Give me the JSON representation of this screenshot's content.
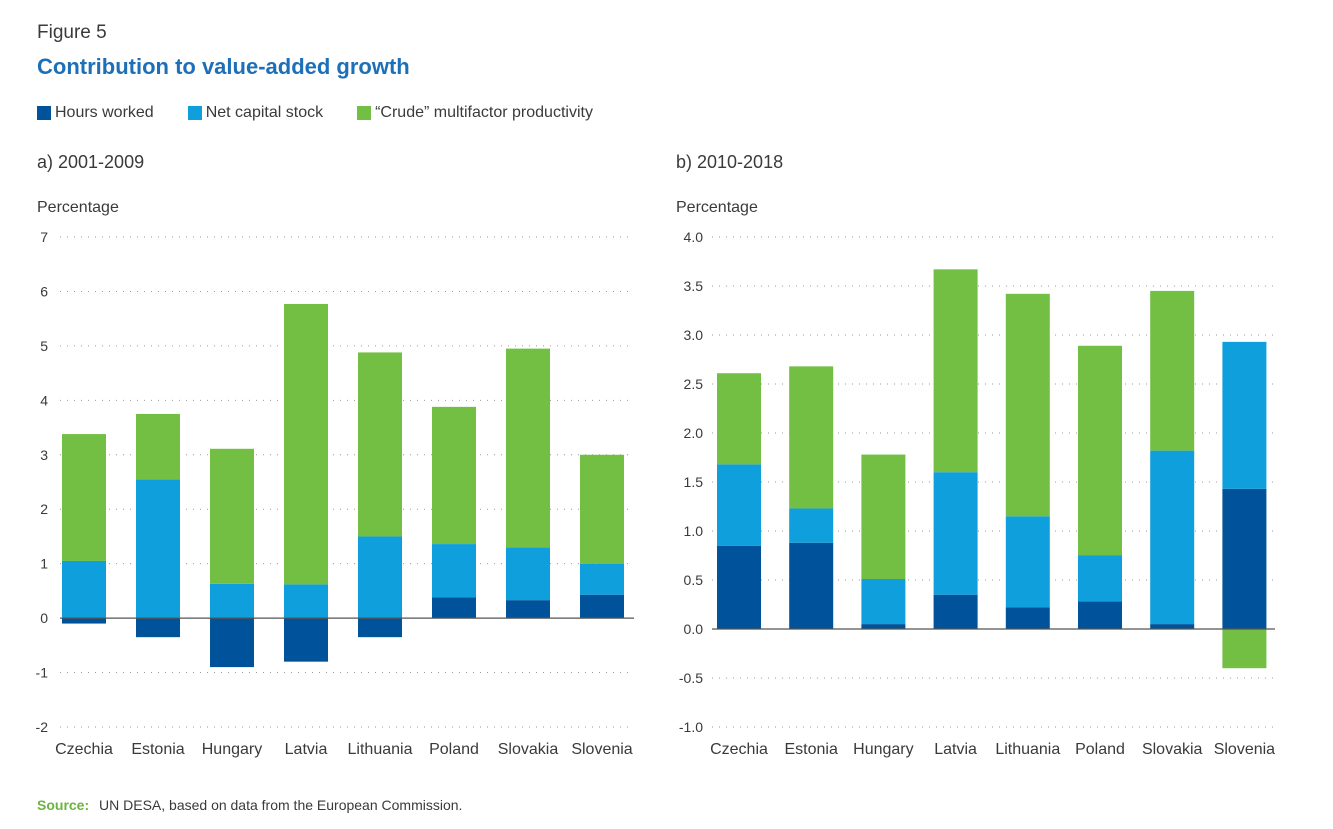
{
  "figure": {
    "label": "Figure 5",
    "title": "Contribution to value-added growth",
    "source_label": "Source:",
    "source_text": "UN DESA, based on data from the European Commission."
  },
  "legend": [
    {
      "name": "Hours worked",
      "color": "#00529b"
    },
    {
      "name": "Net capital stock",
      "color": "#0e9fdc"
    },
    {
      "name": "“Crude” multifactor productivity",
      "color": "#72bf44"
    }
  ],
  "chart_data": [
    {
      "type": "bar",
      "stacked": true,
      "title": "a)  2001-2009",
      "ylabel": "Percentage",
      "ylim": [
        -2,
        7
      ],
      "yticks": [
        "-2",
        "-1",
        "0",
        "1",
        "2",
        "3",
        "4",
        "5",
        "6",
        "7"
      ],
      "ytick_values": [
        -2,
        -1,
        0,
        1,
        2,
        3,
        4,
        5,
        6,
        7
      ],
      "grid": true,
      "categories": [
        "Czechia",
        "Estonia",
        "Hungary",
        "Latvia",
        "Lithuania",
        "Poland",
        "Slovakia",
        "Slovenia"
      ],
      "series": [
        {
          "name": "Hours worked",
          "values": [
            -0.1,
            -0.35,
            -0.9,
            -0.8,
            -0.35,
            0.38,
            0.33,
            0.43
          ]
        },
        {
          "name": "Net capital stock",
          "values": [
            1.05,
            2.55,
            0.63,
            0.62,
            1.5,
            0.98,
            0.97,
            0.57
          ]
        },
        {
          "name": "“Crude” multifactor productivity",
          "values": [
            2.33,
            1.2,
            2.48,
            5.15,
            3.38,
            2.52,
            3.65,
            2.0
          ]
        }
      ]
    },
    {
      "type": "bar",
      "stacked": true,
      "title": "b)  2010-2018",
      "ylabel": "Percentage",
      "ylim": [
        -1.0,
        4.0
      ],
      "yticks": [
        "-1.0",
        "-0.5",
        "0.0",
        "0.5",
        "1.0",
        "1.5",
        "2.0",
        "2.5",
        "3.0",
        "3.5",
        "4.0"
      ],
      "ytick_values": [
        -1.0,
        -0.5,
        0.0,
        0.5,
        1.0,
        1.5,
        2.0,
        2.5,
        3.0,
        3.5,
        4.0
      ],
      "grid": true,
      "categories": [
        "Czechia",
        "Estonia",
        "Hungary",
        "Latvia",
        "Lithuania",
        "Poland",
        "Slovakia",
        "Slovenia"
      ],
      "series": [
        {
          "name": "Hours worked",
          "values": [
            0.85,
            0.88,
            0.05,
            0.35,
            0.22,
            0.28,
            0.05,
            1.43
          ]
        },
        {
          "name": "Net capital stock",
          "values": [
            0.83,
            0.35,
            0.46,
            1.25,
            0.93,
            0.47,
            1.77,
            1.5
          ]
        },
        {
          "name": "“Crude” multifactor productivity",
          "values": [
            0.93,
            1.45,
            1.27,
            2.07,
            2.27,
            2.14,
            1.63,
            -0.4
          ]
        }
      ]
    }
  ]
}
